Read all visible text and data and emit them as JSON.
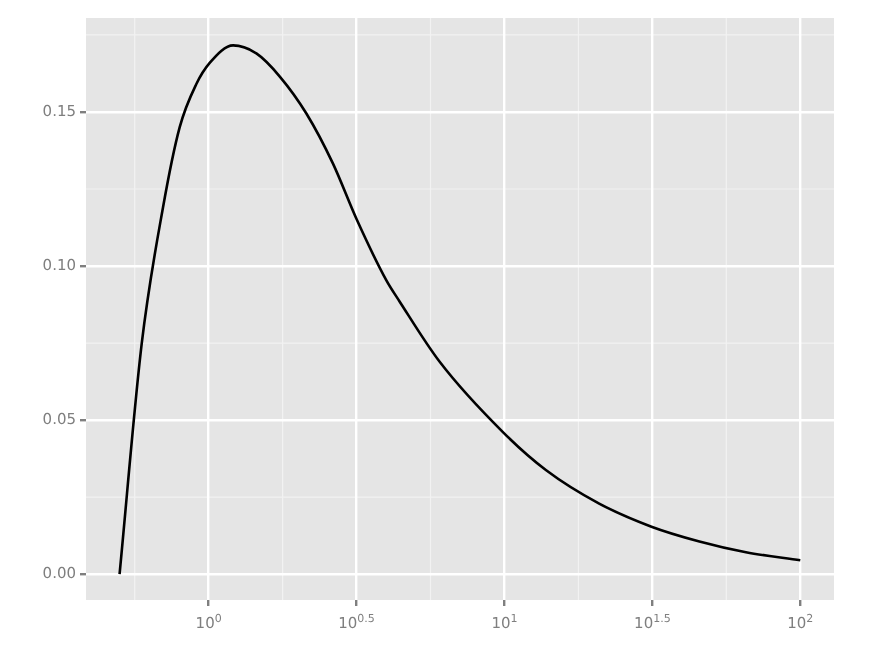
{
  "chart_data": {
    "type": "line",
    "log": "x",
    "grid": true,
    "legend": false,
    "marker": "none",
    "line_style": "solid",
    "x": [
      0.5,
      0.594,
      0.701,
      0.798,
      0.908,
      1.01,
      1.21,
      1.45,
      1.74,
      2.14,
      2.63,
      3.17,
      3.98,
      4.42,
      6.03,
      9.88,
      13.8,
      20.9,
      31.4,
      45.6,
      65.5,
      100
    ],
    "series": [
      {
        "color": "#000000",
        "values": [
          0,
          0.0748,
          0.119,
          0.145,
          0.159,
          0.166,
          0.1716,
          0.169,
          0.1615,
          0.1495,
          0.1333,
          0.115,
          0.0955,
          0.0885,
          0.069,
          0.0461,
          0.0338,
          0.0229,
          0.0154,
          0.0106,
          0.0071,
          0.0045
        ]
      }
    ],
    "xlim": [
      0.385,
      130
    ],
    "ylim": [
      -0.0084,
      0.1805
    ],
    "xticks": [
      {
        "value": 1,
        "label": "10$^{0}$"
      },
      {
        "value": 3.1623,
        "label": "10$^{0.5}$"
      },
      {
        "value": 10,
        "label": "10$^{1}$"
      },
      {
        "value": 31.623,
        "label": "10$^{1.5}$"
      },
      {
        "value": 100,
        "label": "10$^{2}$"
      }
    ],
    "yticks": [
      {
        "value": 0,
        "label": "0.00"
      },
      {
        "value": 0.05,
        "label": "0.05"
      },
      {
        "value": 0.1,
        "label": "0.10"
      },
      {
        "value": 0.15,
        "label": "0.15"
      }
    ]
  }
}
